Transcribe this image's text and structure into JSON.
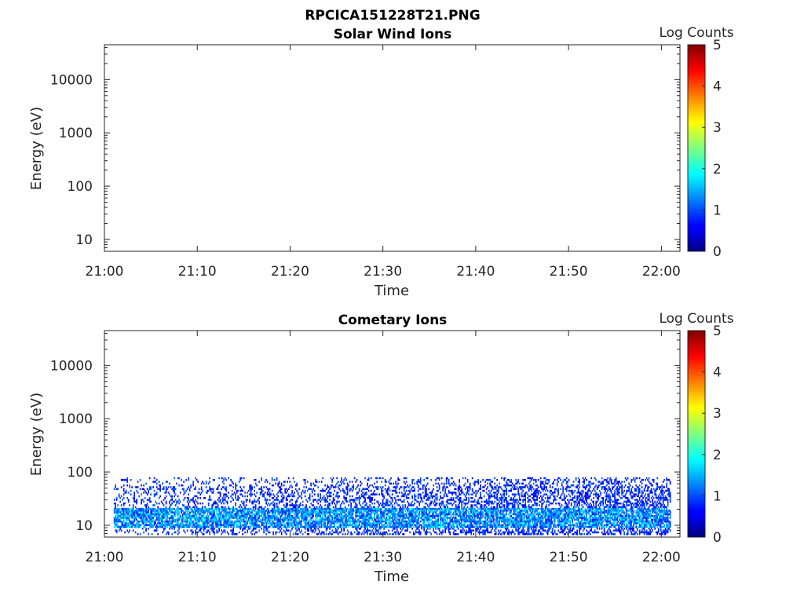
{
  "figure_title": "RPCICA151228T21.PNG",
  "chart_data": [
    {
      "type": "heatmap",
      "title": "Solar Wind Ions",
      "xlabel": "Time",
      "ylabel": "Energy (eV)",
      "y_scale": "log",
      "ylim": [
        6,
        45000
      ],
      "xlim": [
        "21:00",
        "22:02"
      ],
      "x_ticks": [
        "21:00",
        "21:10",
        "21:20",
        "21:30",
        "21:40",
        "21:50",
        "22:00"
      ],
      "y_ticks": [
        "10",
        "100",
        "1000",
        "10000"
      ],
      "colorbar": {
        "label": "Log Counts",
        "range": [
          0,
          5
        ],
        "ticks": [
          "0",
          "1",
          "2",
          "3",
          "4",
          "5"
        ],
        "colormap": "jet"
      },
      "data_extent": null
    },
    {
      "type": "heatmap",
      "title": "Cometary Ions",
      "xlabel": "Time",
      "ylabel": "Energy (eV)",
      "y_scale": "log",
      "ylim": [
        6,
        45000
      ],
      "xlim": [
        "21:00",
        "22:02"
      ],
      "x_ticks": [
        "21:00",
        "21:10",
        "21:20",
        "21:30",
        "21:40",
        "21:50",
        "22:00"
      ],
      "y_ticks": [
        "10",
        "100",
        "1000",
        "10000"
      ],
      "colorbar": {
        "label": "Log Counts",
        "range": [
          0,
          5
        ],
        "ticks": [
          "0",
          "1",
          "2",
          "3",
          "4",
          "5"
        ],
        "colormap": "jet"
      },
      "data_extent": {
        "time_start": "21:01",
        "time_end": "22:01",
        "energy_min": 7,
        "energy_max": 80,
        "dense_band_energy": [
          9,
          22
        ],
        "log_counts_range": [
          0,
          1.5
        ]
      }
    }
  ]
}
